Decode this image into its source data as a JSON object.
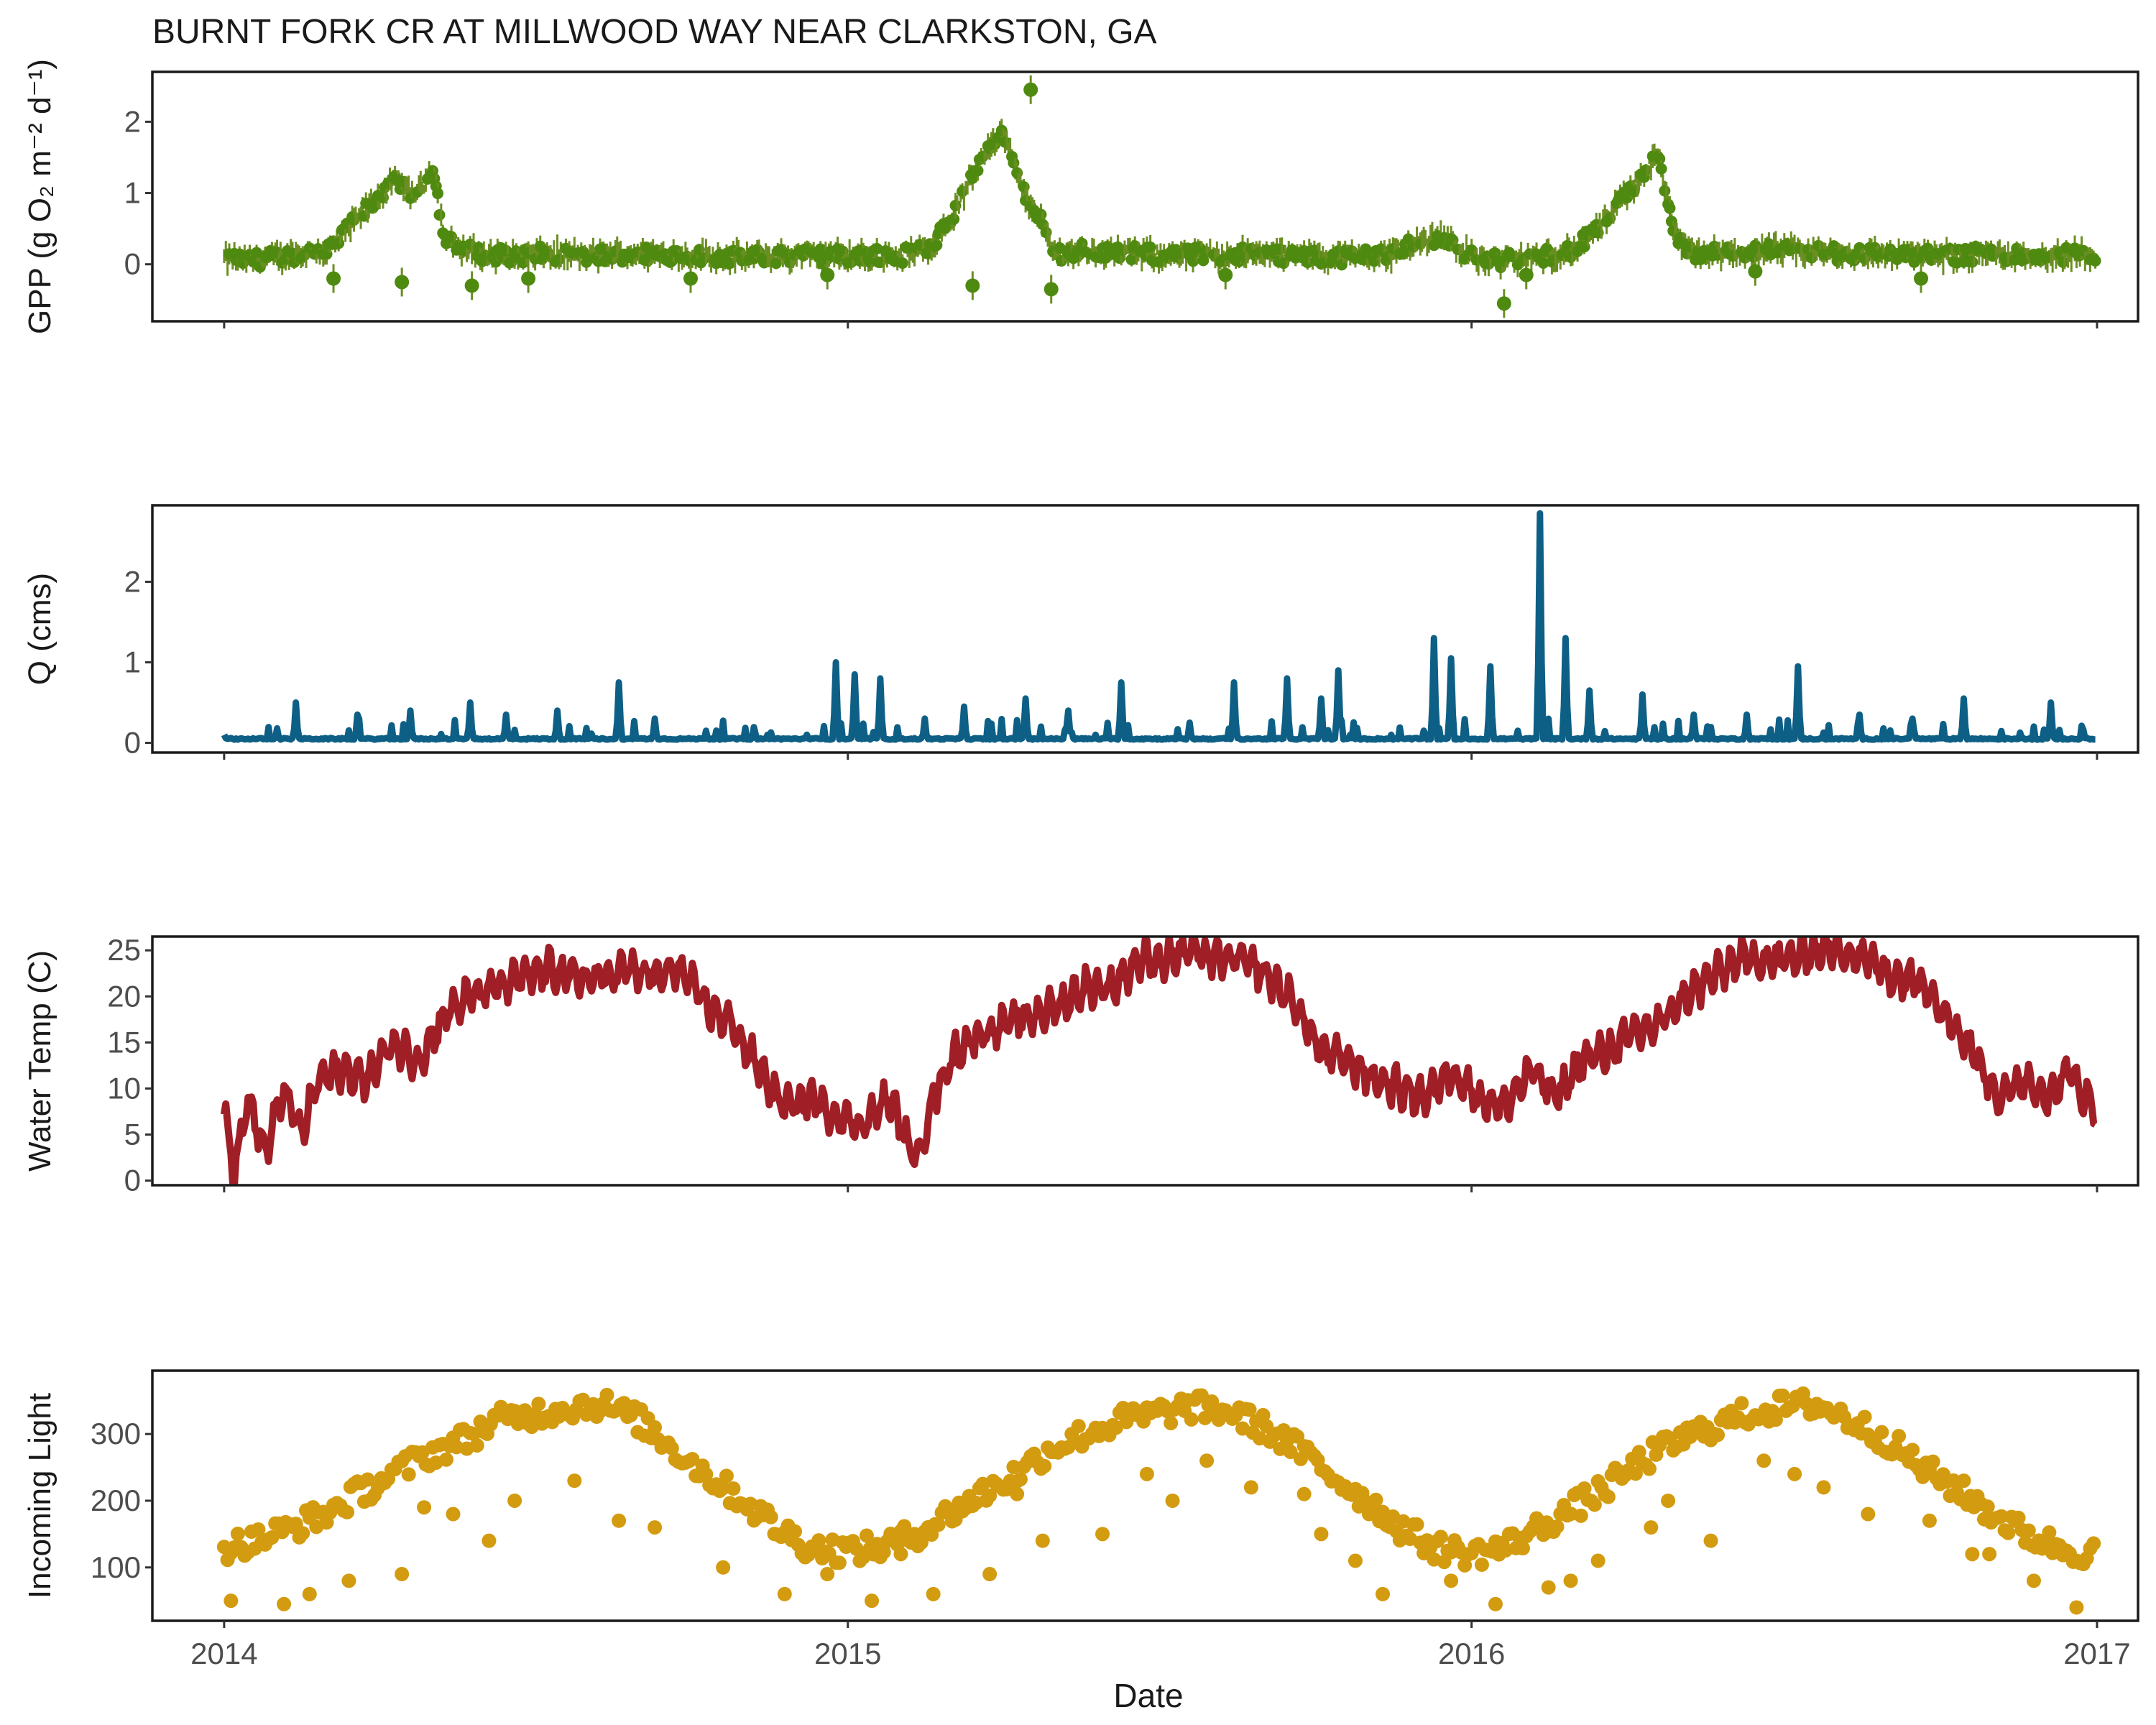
{
  "figure_title": "BURNT FORK CR AT MILLWOOD WAY NEAR CLARKSTON, GA",
  "x_axis": {
    "label": "Date",
    "ticks": [
      "2014",
      "2015",
      "2016",
      "2017"
    ],
    "range": [
      "2013-11-20",
      "2017-01-25"
    ]
  },
  "colors": {
    "gpp": "#4f8a10",
    "gpp_error": "#6b8e23",
    "q": "#0e5f86",
    "temp": "#a01f26",
    "light": "#d39b0f",
    "frame": "#1a1a1a"
  },
  "chart_data": [
    {
      "type": "scatter",
      "name": "gpp",
      "title": "BURNT FORK CR AT MILLWOOD WAY NEAR CLARKSTON, GA",
      "xlabel": "",
      "ylabel": "GPP (g O₂ m⁻² d⁻¹)",
      "ylim": [
        -0.8,
        2.7
      ],
      "yticks": [
        "0",
        "1",
        "2"
      ],
      "grid": false,
      "x": [
        "2014-01-01",
        "2014-01-15",
        "2014-02-01",
        "2014-02-15",
        "2014-03-01",
        "2014-03-08",
        "2014-03-15",
        "2014-03-22",
        "2014-03-29",
        "2014-04-05",
        "2014-04-12",
        "2014-04-19",
        "2014-04-26",
        "2014-05-03",
        "2014-05-10",
        "2014-05-20",
        "2014-06-01",
        "2014-06-20",
        "2014-07-10",
        "2014-08-01",
        "2014-09-01",
        "2014-10-01",
        "2014-11-01",
        "2014-12-01",
        "2015-01-01",
        "2015-02-01",
        "2015-02-15",
        "2015-02-25",
        "2015-03-05",
        "2015-03-12",
        "2015-03-19",
        "2015-03-26",
        "2015-04-02",
        "2015-04-09",
        "2015-04-16",
        "2015-04-23",
        "2015-04-30",
        "2015-05-07",
        "2015-05-14",
        "2015-05-25",
        "2015-06-15",
        "2015-07-15",
        "2015-08-15",
        "2015-09-15",
        "2015-10-15",
        "2015-11-15",
        "2015-12-01",
        "2015-12-15",
        "2016-01-01",
        "2016-01-20",
        "2016-02-10",
        "2016-03-01",
        "2016-03-15",
        "2016-03-29",
        "2016-04-05",
        "2016-04-12",
        "2016-04-19",
        "2016-04-26",
        "2016-05-03",
        "2016-05-10",
        "2016-06-01",
        "2016-07-01",
        "2016-08-01",
        "2016-09-01",
        "2016-10-01",
        "2016-11-01",
        "2016-12-01",
        "2016-12-29"
      ],
      "y": [
        0.08,
        0.05,
        0.1,
        0.15,
        0.18,
        0.3,
        0.5,
        0.7,
        0.85,
        1.05,
        1.15,
        1.0,
        1.05,
        1.4,
        0.35,
        0.2,
        0.15,
        0.12,
        0.15,
        0.12,
        0.15,
        0.13,
        0.1,
        0.12,
        0.12,
        0.12,
        0.2,
        0.45,
        0.75,
        1.1,
        1.45,
        1.75,
        1.85,
        1.3,
        0.9,
        0.7,
        0.2,
        0.15,
        0.2,
        0.18,
        0.15,
        0.12,
        0.15,
        0.12,
        0.1,
        0.15,
        0.3,
        0.4,
        0.1,
        0.05,
        0.1,
        0.2,
        0.5,
        0.9,
        1.1,
        1.35,
        1.5,
        0.7,
        0.2,
        0.15,
        0.15,
        0.2,
        0.15,
        0.15,
        0.12,
        0.15,
        0.12,
        0.15
      ],
      "outliers_x": [
        "2014-03-06",
        "2014-04-15",
        "2014-05-26",
        "2014-06-28",
        "2014-10-01",
        "2014-12-20",
        "2015-03-15",
        "2015-04-18",
        "2015-04-30",
        "2015-08-10",
        "2016-01-20",
        "2016-02-02",
        "2016-06-15",
        "2016-09-20"
      ],
      "outliers_y": [
        -0.2,
        -0.25,
        -0.3,
        -0.2,
        -0.2,
        -0.15,
        -0.3,
        2.45,
        -0.35,
        -0.15,
        -0.55,
        -0.15,
        -0.1,
        -0.2
      ]
    },
    {
      "type": "line",
      "name": "q",
      "title": "",
      "xlabel": "",
      "ylabel": "Q (cms)",
      "ylim": [
        -0.12,
        2.95
      ],
      "yticks": [
        "0",
        "1",
        "2"
      ],
      "grid": false,
      "baseline": 0.05,
      "x": [
        "2014-01-01",
        "2014-01-10",
        "2014-02-01",
        "2014-02-12",
        "2014-03-20",
        "2014-04-20",
        "2014-05-25",
        "2014-06-15",
        "2014-07-15",
        "2014-08-20",
        "2014-09-10",
        "2014-10-10",
        "2014-11-15",
        "2014-12-25",
        "2015-01-01",
        "2015-01-05",
        "2015-01-20",
        "2015-02-15",
        "2015-03-10",
        "2015-04-15",
        "2015-05-10",
        "2015-06-10",
        "2015-07-20",
        "2015-08-15",
        "2015-09-15",
        "2015-10-05",
        "2015-10-15",
        "2015-11-15",
        "2015-12-05",
        "2015-12-10",
        "2015-12-20",
        "2016-01-12",
        "2016-01-28",
        "2016-02-10",
        "2016-02-25",
        "2016-03-10",
        "2016-04-10",
        "2016-05-10",
        "2016-06-10",
        "2016-07-10",
        "2016-08-15",
        "2016-09-15",
        "2016-10-15",
        "2016-11-25",
        "2016-12-05",
        "2016-12-29"
      ],
      "y": [
        0.1,
        0.05,
        0.18,
        0.5,
        0.35,
        0.4,
        0.5,
        0.35,
        0.4,
        0.75,
        0.3,
        0.15,
        0.1,
        1.0,
        0.05,
        0.85,
        0.8,
        0.3,
        0.45,
        0.55,
        0.4,
        0.75,
        0.25,
        0.75,
        0.8,
        0.55,
        0.9,
        0.1,
        0.1,
        1.3,
        1.05,
        0.95,
        0.15,
        2.85,
        1.3,
        0.65,
        0.6,
        0.35,
        0.35,
        0.95,
        0.35,
        0.3,
        0.55,
        0.1,
        0.5,
        0.05
      ]
    },
    {
      "type": "line",
      "name": "temp",
      "title": "",
      "xlabel": "",
      "ylabel": "Water Temp (C)",
      "ylim": [
        -0.5,
        26.5
      ],
      "yticks": [
        "0",
        "5",
        "10",
        "15",
        "20",
        "25"
      ],
      "grid": false,
      "x": [
        "2014-01-01",
        "2014-01-07",
        "2014-01-15",
        "2014-01-25",
        "2014-02-05",
        "2014-02-15",
        "2014-02-25",
        "2014-03-10",
        "2014-03-25",
        "2014-04-10",
        "2014-04-25",
        "2014-05-10",
        "2014-05-25",
        "2014-06-10",
        "2014-06-25",
        "2014-07-10",
        "2014-07-25",
        "2014-08-10",
        "2014-08-25",
        "2014-09-10",
        "2014-09-25",
        "2014-10-10",
        "2014-10-25",
        "2014-11-10",
        "2014-11-25",
        "2014-12-10",
        "2014-12-25",
        "2015-01-10",
        "2015-01-25",
        "2015-02-10",
        "2015-02-20",
        "2015-03-05",
        "2015-03-20",
        "2015-04-05",
        "2015-04-20",
        "2015-05-05",
        "2015-05-20",
        "2015-06-05",
        "2015-06-20",
        "2015-07-05",
        "2015-07-20",
        "2015-08-05",
        "2015-08-20",
        "2015-09-05",
        "2015-09-20",
        "2015-10-05",
        "2015-10-20",
        "2015-11-05",
        "2015-11-20",
        "2015-12-05",
        "2015-12-20",
        "2016-01-05",
        "2016-01-20",
        "2016-02-05",
        "2016-02-20",
        "2016-03-05",
        "2016-03-20",
        "2016-04-05",
        "2016-04-20",
        "2016-05-05",
        "2016-05-20",
        "2016-06-05",
        "2016-06-20",
        "2016-07-05",
        "2016-07-20",
        "2016-08-05",
        "2016-08-20",
        "2016-09-05",
        "2016-09-20",
        "2016-10-05",
        "2016-10-20",
        "2016-11-05",
        "2016-11-20",
        "2016-12-05",
        "2016-12-15",
        "2016-12-29"
      ],
      "y": [
        8,
        1,
        9,
        3,
        10,
        5,
        11,
        12,
        11,
        15,
        13,
        18,
        20,
        21,
        22,
        23,
        22,
        22,
        23,
        22,
        23,
        19,
        17,
        12,
        8,
        9,
        7,
        6,
        9,
        2,
        9,
        14,
        16,
        17,
        18,
        19,
        21,
        21,
        24,
        24,
        25,
        24,
        24,
        22,
        19,
        14,
        13,
        11,
        10,
        9,
        12,
        9,
        8,
        12,
        9,
        13,
        14,
        16,
        17,
        20,
        22,
        24,
        24,
        24,
        25,
        25,
        24,
        22,
        22,
        18,
        14,
        9,
        11,
        9,
        12,
        8
      ]
    },
    {
      "type": "scatter",
      "name": "light",
      "title": "",
      "xlabel": "Date",
      "ylabel": "Incoming Light",
      "ylim": [
        20,
        395
      ],
      "yticks": [
        "100",
        "200",
        "300"
      ],
      "grid": false,
      "x": [
        "2014-01-01",
        "2014-01-20",
        "2014-02-10",
        "2014-03-01",
        "2014-03-20",
        "2014-04-10",
        "2014-05-01",
        "2014-05-20",
        "2014-06-10",
        "2014-07-01",
        "2014-07-20",
        "2014-08-10",
        "2014-09-01",
        "2014-09-20",
        "2014-10-10",
        "2014-11-01",
        "2014-11-20",
        "2014-12-10",
        "2015-01-01",
        "2015-01-20",
        "2015-02-10",
        "2015-03-01",
        "2015-03-20",
        "2015-04-10",
        "2015-05-01",
        "2015-05-20",
        "2015-06-10",
        "2015-07-01",
        "2015-07-20",
        "2015-08-10",
        "2015-09-01",
        "2015-09-20",
        "2015-10-10",
        "2015-11-01",
        "2015-11-20",
        "2015-12-10",
        "2016-01-01",
        "2016-01-20",
        "2016-02-10",
        "2016-03-01",
        "2016-03-20",
        "2016-04-10",
        "2016-05-01",
        "2016-05-20",
        "2016-06-10",
        "2016-07-01",
        "2016-07-20",
        "2016-08-10",
        "2016-09-01",
        "2016-09-20",
        "2016-10-10",
        "2016-11-01",
        "2016-11-20",
        "2016-12-10",
        "2016-12-29"
      ],
      "y": [
        130,
        140,
        160,
        180,
        210,
        240,
        270,
        290,
        320,
        330,
        340,
        345,
        320,
        280,
        240,
        200,
        160,
        130,
        125,
        130,
        150,
        180,
        210,
        240,
        280,
        300,
        320,
        330,
        340,
        335,
        310,
        280,
        240,
        200,
        160,
        130,
        120,
        130,
        160,
        190,
        220,
        260,
        290,
        310,
        330,
        340,
        345,
        320,
        290,
        250,
        220,
        180,
        150,
        130,
        120
      ],
      "scatter_x": [
        "2014-01-05",
        "2014-02-20",
        "2014-03-15",
        "2014-04-15",
        "2014-05-15",
        "2014-06-20",
        "2014-07-25",
        "2014-09-10",
        "2014-10-20",
        "2014-11-25",
        "2014-12-20",
        "2015-01-15",
        "2015-02-20",
        "2015-03-25",
        "2015-04-25",
        "2015-05-30",
        "2015-06-25",
        "2015-07-30",
        "2015-08-25",
        "2015-09-25",
        "2015-10-25",
        "2015-11-10",
        "2015-12-20",
        "2016-01-15",
        "2016-02-15",
        "2016-03-15",
        "2016-04-15",
        "2016-05-20",
        "2016-06-20",
        "2016-07-25",
        "2016-08-20",
        "2016-09-25",
        "2016-10-20",
        "2016-11-25",
        "2016-12-20",
        "2014-02-05",
        "2014-06-05",
        "2014-08-20",
        "2015-02-01",
        "2015-07-10",
        "2015-10-05",
        "2016-02-28",
        "2016-07-08",
        "2016-10-30",
        "2014-04-28",
        "2015-04-10",
        "2016-04-25"
      ],
      "scatter_y": [
        50,
        60,
        80,
        90,
        180,
        200,
        230,
        160,
        100,
        60,
        90,
        50,
        60,
        90,
        140,
        150,
        240,
        260,
        220,
        210,
        110,
        60,
        80,
        45,
        70,
        110,
        160,
        140,
        260,
        220,
        180,
        170,
        120,
        80,
        40,
        45,
        140,
        170,
        120,
        200,
        150,
        80,
        240,
        120,
        190,
        210,
        200
      ]
    }
  ]
}
